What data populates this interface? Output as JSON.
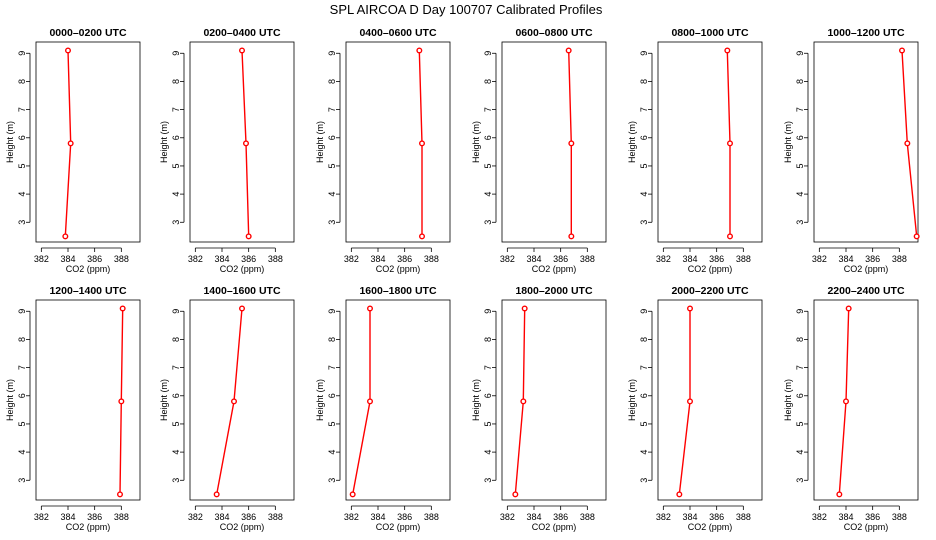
{
  "figure_title": "SPL AIRCOA D  Day 100707  Calibrated Profiles",
  "chart_data": {
    "type": "line",
    "title": "SPL AIRCOA D  Day 100707  Calibrated Profiles",
    "xlabel": "CO2 (ppm)",
    "ylabel": "Height (m)",
    "xlim": [
      381.6,
      389.4
    ],
    "ylim": [
      2.3,
      9.4
    ],
    "xticks": [
      382,
      384,
      386,
      388
    ],
    "yticks": [
      3,
      4,
      5,
      6,
      7,
      8,
      9
    ],
    "heights": [
      2.5,
      5.8,
      9.1
    ],
    "panels": [
      {
        "title": "0000–0200 UTC",
        "co2": [
          383.8,
          384.2,
          384.0
        ]
      },
      {
        "title": "0200–0400 UTC",
        "co2": [
          386.0,
          385.8,
          385.5
        ]
      },
      {
        "title": "0400–0600 UTC",
        "co2": [
          387.3,
          387.3,
          387.1
        ]
      },
      {
        "title": "0600–0800 UTC",
        "co2": [
          386.8,
          386.8,
          386.6
        ]
      },
      {
        "title": "0800–1000 UTC",
        "co2": [
          387.0,
          387.0,
          386.8
        ]
      },
      {
        "title": "1000–1200 UTC",
        "co2": [
          389.3,
          388.6,
          388.2
        ]
      },
      {
        "title": "1200–1400 UTC",
        "co2": [
          387.9,
          388.0,
          388.1
        ]
      },
      {
        "title": "1400–1600 UTC",
        "co2": [
          383.6,
          384.9,
          385.5
        ]
      },
      {
        "title": "1600–1800 UTC",
        "co2": [
          382.1,
          383.4,
          383.4
        ]
      },
      {
        "title": "1800–2000 UTC",
        "co2": [
          382.6,
          383.2,
          383.3
        ]
      },
      {
        "title": "2000–2200 UTC",
        "co2": [
          383.2,
          384.0,
          384.0
        ]
      },
      {
        "title": "2200–2400 UTC",
        "co2": [
          383.5,
          384.0,
          384.2
        ]
      }
    ]
  }
}
